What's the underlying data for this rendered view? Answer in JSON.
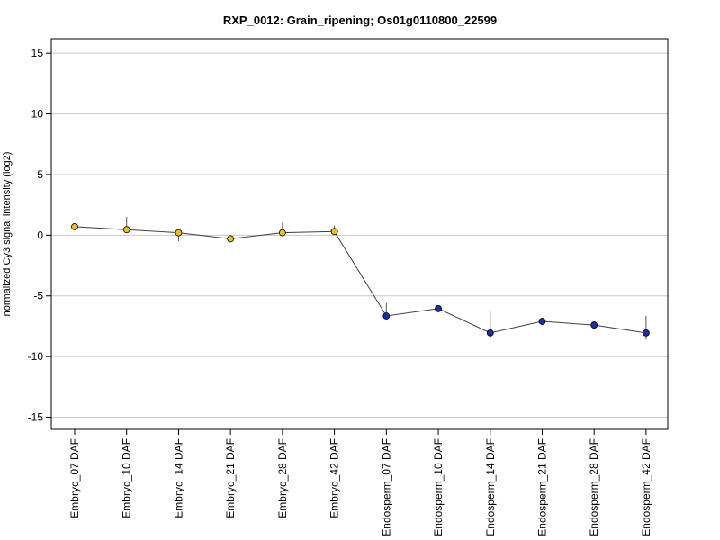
{
  "chart_data": {
    "type": "line",
    "title": "RXP_0012: Grain_ripening; Os01g0110800_22599",
    "xlabel": "",
    "ylabel": "normalized Cy3 signal intensity (log2)",
    "ylim": [
      -16,
      16.2
    ],
    "yticks": [
      15,
      10,
      5,
      0,
      -5,
      -10,
      -15
    ],
    "grid": true,
    "categories": [
      "Embryo_07 DAF",
      "Embryo_10 DAF",
      "Embryo_14 DAF",
      "Embryo_21 DAF",
      "Embryo_28 DAF",
      "Embryo_42 DAF",
      "Endosperm_07 DAF",
      "Endosperm_10 DAF",
      "Endosperm_14 DAF",
      "Endosperm_21 DAF",
      "Endosperm_28 DAF",
      "Endosperm_42 DAF"
    ],
    "values": [
      0.7,
      0.45,
      0.2,
      -0.3,
      0.2,
      0.3,
      -6.65,
      -6.05,
      -8.05,
      -7.1,
      -7.4,
      -8.05
    ],
    "error_low": [
      0.7,
      0.45,
      -0.5,
      -0.3,
      0.2,
      0.3,
      -6.65,
      -6.05,
      -8.6,
      -7.1,
      -7.4,
      -8.6
    ],
    "error_high": [
      0.7,
      1.5,
      0.2,
      -0.3,
      1.05,
      0.8,
      -5.6,
      -6.05,
      -6.3,
      -7.1,
      -7.4,
      -6.65
    ],
    "point_colors": [
      "#f0c020",
      "#f0c020",
      "#f0c020",
      "#f0c020",
      "#f0c020",
      "#f0c020",
      "#1a2ea8",
      "#1a2ea8",
      "#1a2ea8",
      "#1a2ea8",
      "#1a2ea8",
      "#1a2ea8"
    ],
    "line_color": "#404040",
    "grid_color": "#c8c8c8"
  }
}
